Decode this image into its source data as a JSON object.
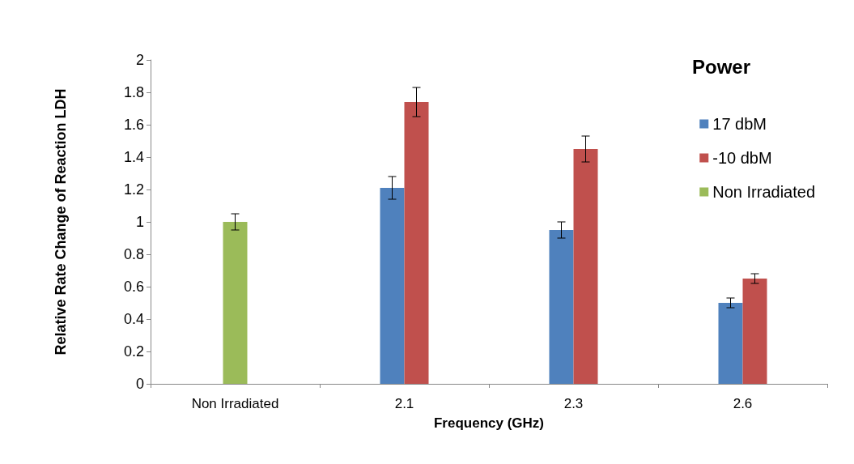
{
  "chart_data": {
    "type": "bar",
    "xlabel": "Frequency (GHz)",
    "ylabel": "Relative Rate Change of Reaction LDH",
    "legend_title": "Power",
    "categories": [
      "Non Irradiated",
      "2.1",
      "2.3",
      "2.6"
    ],
    "series": [
      {
        "name": "17 dbM",
        "color": "#4f81bd",
        "values": [
          null,
          1.21,
          0.95,
          0.5
        ],
        "errors": [
          null,
          0.07,
          0.05,
          0.03
        ]
      },
      {
        "name": "-10 dbM",
        "color": "#c0504d",
        "values": [
          null,
          1.74,
          1.45,
          0.65
        ],
        "errors": [
          null,
          0.09,
          0.08,
          0.03
        ]
      },
      {
        "name": "Non Irradiated",
        "color": "#9bbb59",
        "values": [
          1.0,
          null,
          null,
          null
        ],
        "errors": [
          0.05,
          null,
          null,
          null
        ]
      }
    ],
    "ylim": [
      0,
      2
    ],
    "yticks": [
      0,
      0.2,
      0.4,
      0.6,
      0.8,
      1,
      1.2,
      1.4,
      1.6,
      1.8,
      2
    ],
    "grid": false,
    "legend": "top right"
  }
}
